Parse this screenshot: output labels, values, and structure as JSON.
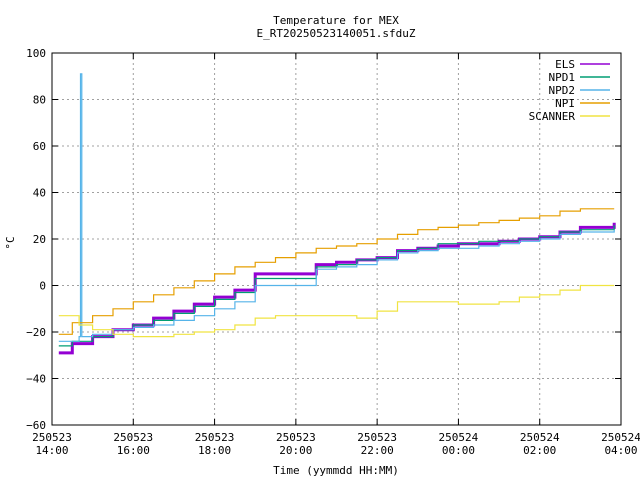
{
  "chart_data": {
    "type": "line",
    "title": "Temperature for MEX",
    "subtitle": "E_RT20250523140051.sfduZ",
    "xlabel": "Time (yymmdd HH:MM)",
    "ylabel": "°C",
    "xlim": [
      "2025-05-23 14:00",
      "2025-05-24 04:00"
    ],
    "ylim": [
      -60,
      100
    ],
    "grid": true,
    "legend_position": "top-right",
    "x_ticks": [
      {
        "date": "250523",
        "time": "14:00",
        "x": "2025-05-23 14:00"
      },
      {
        "date": "250523",
        "time": "16:00",
        "x": "2025-05-23 16:00"
      },
      {
        "date": "250523",
        "time": "18:00",
        "x": "2025-05-23 18:00"
      },
      {
        "date": "250523",
        "time": "20:00",
        "x": "2025-05-23 20:00"
      },
      {
        "date": "250523",
        "time": "22:00",
        "x": "2025-05-23 22:00"
      },
      {
        "date": "250524",
        "time": "00:00",
        "x": "2025-05-24 00:00"
      },
      {
        "date": "250524",
        "time": "02:00",
        "x": "2025-05-24 02:00"
      },
      {
        "date": "250524",
        "time": "04:00",
        "x": "2025-05-24 04:00"
      }
    ],
    "y_ticks": [
      "100",
      "80",
      "60",
      "40",
      "20",
      "0",
      "−20",
      "−40",
      "−60"
    ],
    "series": [
      {
        "name": "ELS",
        "color": "#9400d3",
        "x": [
          "2025-05-23 14:10",
          "2025-05-23 14:30",
          "2025-05-23 15:00",
          "2025-05-23 15:30",
          "2025-05-23 16:00",
          "2025-05-23 16:30",
          "2025-05-23 17:00",
          "2025-05-23 17:30",
          "2025-05-23 18:00",
          "2025-05-23 18:30",
          "2025-05-23 19:00",
          "2025-05-23 20:30",
          "2025-05-23 21:00",
          "2025-05-23 21:30",
          "2025-05-23 22:00",
          "2025-05-23 22:30",
          "2025-05-23 23:00",
          "2025-05-23 23:30",
          "2025-05-24 00:00",
          "2025-05-24 00:30",
          "2025-05-24 01:00",
          "2025-05-24 01:30",
          "2025-05-24 02:00",
          "2025-05-24 02:30",
          "2025-05-24 03:00",
          "2025-05-24 03:50"
        ],
        "y": [
          -29,
          -25,
          -22,
          -19,
          -17,
          -14,
          -11,
          -8,
          -5,
          -2,
          5,
          9,
          10,
          11,
          12,
          15,
          16,
          17,
          18,
          18,
          19,
          20,
          21,
          23,
          25,
          27
        ]
      },
      {
        "name": "NPD1",
        "color": "#009e73",
        "x": [
          "2025-05-23 14:10",
          "2025-05-23 14:30",
          "2025-05-23 15:00",
          "2025-05-23 15:30",
          "2025-05-23 16:00",
          "2025-05-23 16:30",
          "2025-05-23 17:00",
          "2025-05-23 17:30",
          "2025-05-23 18:00",
          "2025-05-23 18:30",
          "2025-05-23 19:00",
          "2025-05-23 20:30",
          "2025-05-23 21:00",
          "2025-05-23 21:30",
          "2025-05-23 22:00",
          "2025-05-23 22:30",
          "2025-05-23 23:00",
          "2025-05-23 23:30",
          "2025-05-24 00:00",
          "2025-05-24 00:30",
          "2025-05-24 01:00",
          "2025-05-24 01:30",
          "2025-05-24 02:00",
          "2025-05-24 02:30",
          "2025-05-24 03:00",
          "2025-05-24 03:50"
        ],
        "y": [
          -26,
          -24,
          -22,
          -19,
          -17,
          -15,
          -12,
          -9,
          -6,
          -3,
          3,
          8,
          9,
          11,
          12,
          15,
          16,
          18,
          18,
          19,
          19,
          20,
          21,
          23,
          24,
          26
        ]
      },
      {
        "name": "NPD2",
        "color": "#56b4e9",
        "x": [
          "2025-05-23 14:10",
          "2025-05-23 14:40",
          "2025-05-23 14:42",
          "2025-05-23 14:44",
          "2025-05-23 15:00",
          "2025-05-23 15:30",
          "2025-05-23 16:00",
          "2025-05-23 16:30",
          "2025-05-23 17:00",
          "2025-05-23 17:30",
          "2025-05-23 18:00",
          "2025-05-23 18:30",
          "2025-05-23 19:00",
          "2025-05-23 20:30",
          "2025-05-23 21:00",
          "2025-05-23 21:30",
          "2025-05-23 22:00",
          "2025-05-23 22:30",
          "2025-05-23 23:00",
          "2025-05-23 23:30",
          "2025-05-24 00:00",
          "2025-05-24 00:30",
          "2025-05-24 01:00",
          "2025-05-24 01:30",
          "2025-05-24 02:00",
          "2025-05-24 02:30",
          "2025-05-24 03:00",
          "2025-05-24 03:50"
        ],
        "y": [
          -24,
          -22,
          91,
          -22,
          -21,
          -19,
          -18,
          -17,
          -15,
          -13,
          -10,
          -7,
          0,
          7,
          8,
          9,
          11,
          14,
          15,
          16,
          16,
          17,
          18,
          19,
          20,
          22,
          23,
          24
        ]
      },
      {
        "name": "NPI",
        "color": "#e69f00",
        "x": [
          "2025-05-23 14:10",
          "2025-05-23 14:30",
          "2025-05-23 15:00",
          "2025-05-23 15:30",
          "2025-05-23 16:00",
          "2025-05-23 16:30",
          "2025-05-23 17:00",
          "2025-05-23 17:30",
          "2025-05-23 18:00",
          "2025-05-23 18:30",
          "2025-05-23 19:00",
          "2025-05-23 19:30",
          "2025-05-23 20:00",
          "2025-05-23 20:30",
          "2025-05-23 21:00",
          "2025-05-23 21:30",
          "2025-05-23 22:00",
          "2025-05-23 22:30",
          "2025-05-23 23:00",
          "2025-05-23 23:30",
          "2025-05-24 00:00",
          "2025-05-24 00:30",
          "2025-05-24 01:00",
          "2025-05-24 01:30",
          "2025-05-24 02:00",
          "2025-05-24 02:30",
          "2025-05-24 03:00",
          "2025-05-24 03:50"
        ],
        "y": [
          -21,
          -16,
          -13,
          -10,
          -7,
          -4,
          -1,
          2,
          5,
          8,
          10,
          12,
          14,
          16,
          17,
          18,
          20,
          22,
          24,
          25,
          26,
          27,
          28,
          29,
          30,
          32,
          33,
          33
        ]
      },
      {
        "name": "SCANNER",
        "color": "#f0e442",
        "x": [
          "2025-05-23 14:10",
          "2025-05-23 14:40",
          "2025-05-23 15:00",
          "2025-05-23 15:30",
          "2025-05-23 16:00",
          "2025-05-23 16:30",
          "2025-05-23 17:00",
          "2025-05-23 17:30",
          "2025-05-23 18:00",
          "2025-05-23 18:30",
          "2025-05-23 19:00",
          "2025-05-23 19:30",
          "2025-05-23 20:00",
          "2025-05-23 20:30",
          "2025-05-23 21:00",
          "2025-05-23 21:30",
          "2025-05-23 22:00",
          "2025-05-23 22:30",
          "2025-05-23 23:00",
          "2025-05-23 23:30",
          "2025-05-24 00:00",
          "2025-05-24 00:30",
          "2025-05-24 01:00",
          "2025-05-24 01:30",
          "2025-05-24 02:00",
          "2025-05-24 02:30",
          "2025-05-24 03:00",
          "2025-05-24 03:50"
        ],
        "y": [
          -13,
          -17,
          -19,
          -21,
          -22,
          -22,
          -21,
          -20,
          -19,
          -17,
          -14,
          -13,
          -13,
          -13,
          -13,
          -14,
          -11,
          -7,
          -7,
          -7,
          -8,
          -8,
          -7,
          -5,
          -4,
          -2,
          0,
          0
        ]
      }
    ]
  }
}
